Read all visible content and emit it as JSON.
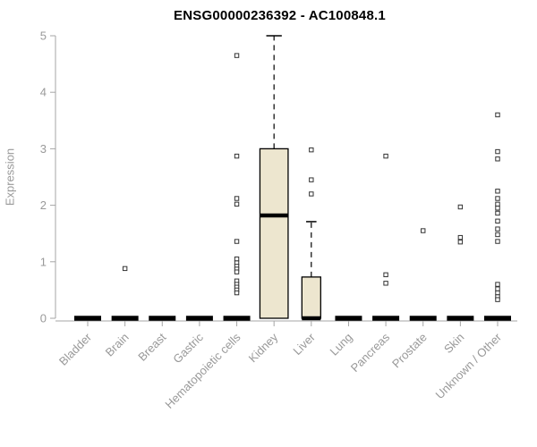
{
  "chart_data": {
    "type": "boxplot",
    "title": "ENSG00000236392 - AC100848.1",
    "ylabel": "Expression",
    "ylim": [
      0,
      5
    ],
    "yticks": [
      0,
      1,
      2,
      3,
      4,
      5
    ],
    "grid": false,
    "categories": [
      "Bladder",
      "Brain",
      "Breast",
      "Gastric",
      "Hematopoietic cells",
      "Kidney",
      "Liver",
      "Lung",
      "Pancreas",
      "Prostate",
      "Skin",
      "Unknown / Other"
    ],
    "boxes": [
      {
        "category": "Bladder",
        "q1": 0,
        "median": 0,
        "q3": 0,
        "whisker_low": 0,
        "whisker_high": 0,
        "rel_width": 1,
        "outliers": []
      },
      {
        "category": "Brain",
        "q1": 0,
        "median": 0,
        "q3": 0,
        "whisker_low": 0,
        "whisker_high": 0,
        "rel_width": 1,
        "outliers": [
          0.88
        ]
      },
      {
        "category": "Breast",
        "q1": 0,
        "median": 0,
        "q3": 0,
        "whisker_low": 0,
        "whisker_high": 0,
        "rel_width": 1,
        "outliers": []
      },
      {
        "category": "Gastric",
        "q1": 0,
        "median": 0,
        "q3": 0,
        "whisker_low": 0,
        "whisker_high": 0,
        "rel_width": 1,
        "outliers": []
      },
      {
        "category": "Hematopoietic cells",
        "q1": 0,
        "median": 0,
        "q3": 0,
        "whisker_low": 0,
        "whisker_high": 0,
        "rel_width": 1,
        "outliers": [
          4.65,
          2.87,
          2.12,
          2.02,
          1.36,
          1.05,
          0.98,
          0.92,
          0.87,
          0.82,
          0.66,
          0.6,
          0.55,
          0.5,
          0.45
        ]
      },
      {
        "category": "Kidney",
        "q1": 0,
        "median": 1.82,
        "q3": 3.0,
        "whisker_low": 0,
        "whisker_high": 5.0,
        "rel_width": 1.05,
        "outliers": []
      },
      {
        "category": "Liver",
        "q1": 0,
        "median": 0,
        "q3": 0.73,
        "whisker_low": 0,
        "whisker_high": 1.71,
        "rel_width": 0.7,
        "outliers": [
          2.98,
          2.45,
          2.2
        ]
      },
      {
        "category": "Lung",
        "q1": 0,
        "median": 0,
        "q3": 0,
        "whisker_low": 0,
        "whisker_high": 0,
        "rel_width": 1,
        "outliers": []
      },
      {
        "category": "Pancreas",
        "q1": 0,
        "median": 0,
        "q3": 0,
        "whisker_low": 0,
        "whisker_high": 0,
        "rel_width": 1,
        "outliers": [
          2.87,
          0.77,
          0.62
        ]
      },
      {
        "category": "Prostate",
        "q1": 0,
        "median": 0,
        "q3": 0,
        "whisker_low": 0,
        "whisker_high": 0,
        "rel_width": 1,
        "outliers": [
          1.55
        ]
      },
      {
        "category": "Skin",
        "q1": 0,
        "median": 0,
        "q3": 0,
        "whisker_low": 0,
        "whisker_high": 0,
        "rel_width": 1,
        "outliers": [
          1.97,
          1.43,
          1.35
        ]
      },
      {
        "category": "Unknown / Other",
        "q1": 0,
        "median": 0,
        "q3": 0,
        "whisker_low": 0,
        "whisker_high": 0,
        "rel_width": 1,
        "outliers": [
          3.6,
          2.95,
          2.82,
          2.25,
          2.12,
          2.02,
          1.95,
          1.86,
          1.72,
          1.58,
          1.48,
          1.36,
          0.6,
          0.52,
          0.45,
          0.38,
          0.33
        ]
      }
    ],
    "colors": {
      "box_fill": "#EDE6CF",
      "box_stroke": "#000000",
      "median": "#000000",
      "whisker": "#000000",
      "outlier_stroke": "#333333",
      "outlier_fill": "#FFFFFF",
      "axis": "#A6A6A6",
      "tick_label": "#999999",
      "title": "#000000"
    }
  }
}
